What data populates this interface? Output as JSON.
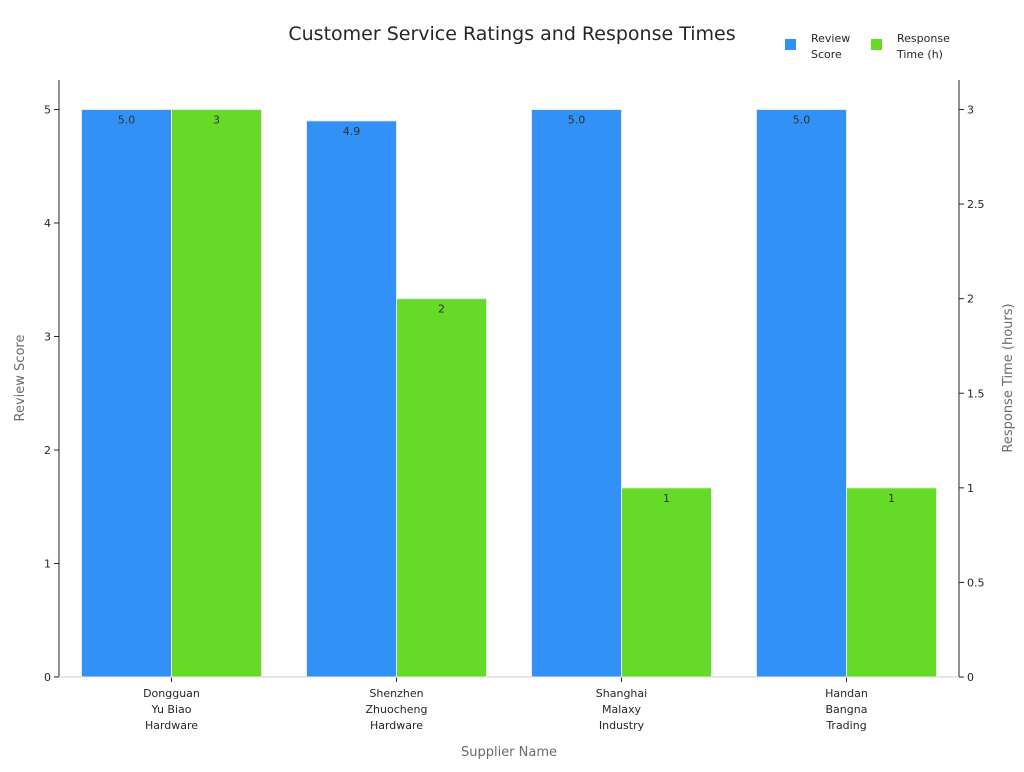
{
  "chart_data": {
    "type": "bar",
    "title": "Customer Service Ratings and Response Times",
    "xlabel": "Supplier Name",
    "ylabel_left": "Review Score",
    "ylabel_right": "Response Time (hours)",
    "categories": [
      [
        "Dongguan",
        "Yu Biao",
        "Hardware"
      ],
      [
        "Shenzhen",
        "Zhuocheng",
        "Hardware"
      ],
      [
        "Shanghai",
        "Malaxy",
        "Industry"
      ],
      [
        "Handan",
        "Bangna",
        "Trading"
      ]
    ],
    "series": [
      {
        "name": "Review Score",
        "legend_lines": [
          "Review",
          "Score"
        ],
        "axis": "left",
        "color": "#3291f6",
        "values": [
          5.0,
          4.9,
          5.0,
          5.0
        ],
        "labels": [
          "5.0",
          "4.9",
          "5.0",
          "5.0"
        ]
      },
      {
        "name": "Response Time (h)",
        "legend_lines": [
          "Response",
          "Time (h)"
        ],
        "axis": "right",
        "color": "#66db27",
        "values": [
          3,
          2,
          1,
          1
        ],
        "labels": [
          "3",
          "2",
          "1",
          "1"
        ]
      }
    ],
    "ylim_left": [
      0,
      5.26
    ],
    "ylim_right": [
      0,
      3.156
    ],
    "yticks_left": [
      "0",
      "1",
      "2",
      "3",
      "4",
      "5"
    ],
    "yticks_left_values": [
      0,
      1,
      2,
      3,
      4,
      5
    ],
    "yticks_right": [
      "0",
      "0.5",
      "1",
      "1.5",
      "2",
      "2.5",
      "3"
    ],
    "yticks_right_values": [
      0,
      0.5,
      1,
      1.5,
      2,
      2.5,
      3
    ],
    "legend_position": "top-right",
    "grid": false
  }
}
